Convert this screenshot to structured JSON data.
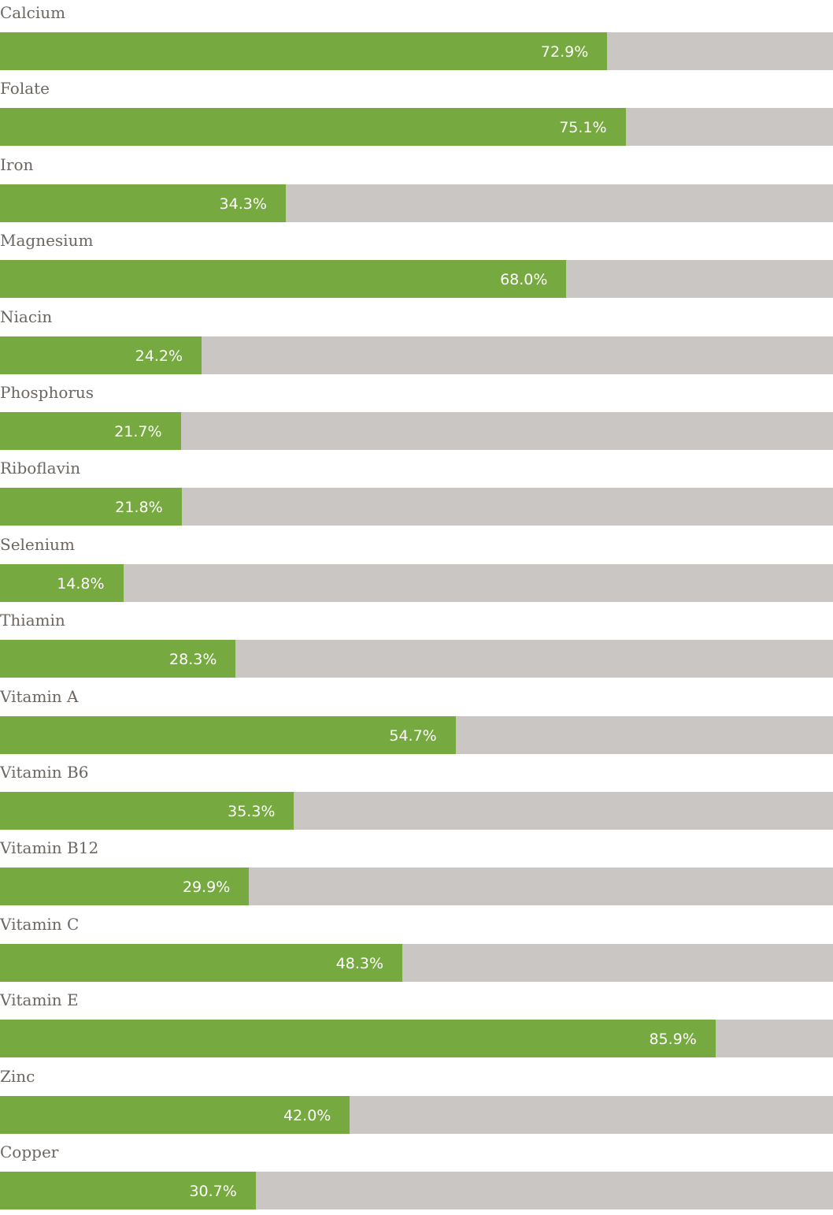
{
  "colors": {
    "bar_fill": "#76aa40",
    "track": "#cac6c4",
    "label_text": "#6d6560",
    "value_text": "#ffffff"
  },
  "chart_data": {
    "type": "bar",
    "orientation": "horizontal",
    "title": "",
    "xlabel": "",
    "ylabel": "",
    "xlim": [
      0,
      100
    ],
    "unit": "%",
    "grid": false,
    "categories": [
      "Calcium",
      "Folate",
      "Iron",
      "Magnesium",
      "Niacin",
      "Phosphorus",
      "Riboflavin",
      "Selenium",
      "Thiamin",
      "Vitamin A",
      "Vitamin B6",
      "Vitamin B12",
      "Vitamin C",
      "Vitamin E",
      "Zinc",
      "Copper"
    ],
    "values": [
      72.9,
      75.1,
      34.3,
      68.0,
      24.2,
      21.7,
      21.8,
      14.8,
      28.3,
      54.7,
      35.3,
      29.9,
      48.3,
      85.9,
      42.0,
      30.7
    ],
    "value_labels": [
      "72.9%",
      "75.1%",
      "34.3%",
      "68.0%",
      "24.2%",
      "21.7%",
      "21.8%",
      "14.8%",
      "28.3%",
      "54.7%",
      "35.3%",
      "29.9%",
      "48.3%",
      "85.9%",
      "42.0%",
      "30.7%"
    ]
  }
}
